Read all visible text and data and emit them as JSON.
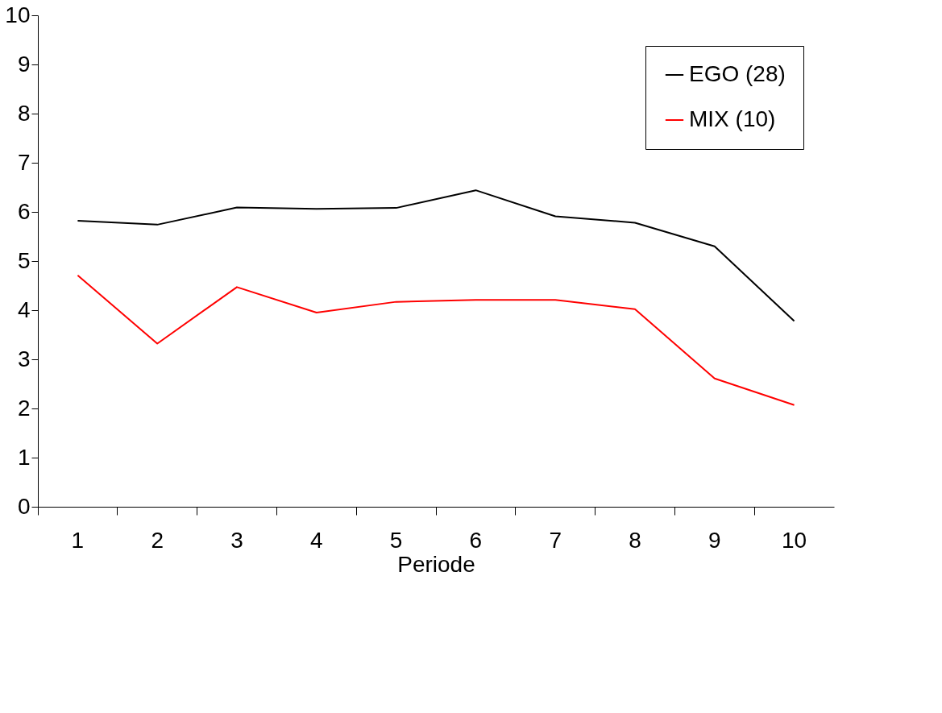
{
  "chart_data": {
    "type": "line",
    "xlabel": "Periode",
    "categories": [
      "1",
      "2",
      "3",
      "4",
      "5",
      "6",
      "7",
      "8",
      "9",
      "10"
    ],
    "series": [
      {
        "name": "EGO (28)",
        "color": "#000000",
        "values": [
          5.82,
          5.74,
          6.09,
          6.06,
          6.08,
          6.44,
          5.91,
          5.78,
          5.3,
          3.78
        ]
      },
      {
        "name": "MIX (10)",
        "color": "#ff0000",
        "values": [
          4.71,
          3.32,
          4.47,
          3.95,
          4.17,
          4.21,
          4.21,
          4.02,
          2.61,
          2.07
        ]
      }
    ],
    "ylim": [
      0,
      10
    ],
    "yticks": [
      0,
      1,
      2,
      3,
      4,
      5,
      6,
      7,
      8,
      9,
      10
    ],
    "grid": false,
    "legend": "top right",
    "marker": "none",
    "line_style": "solid"
  }
}
